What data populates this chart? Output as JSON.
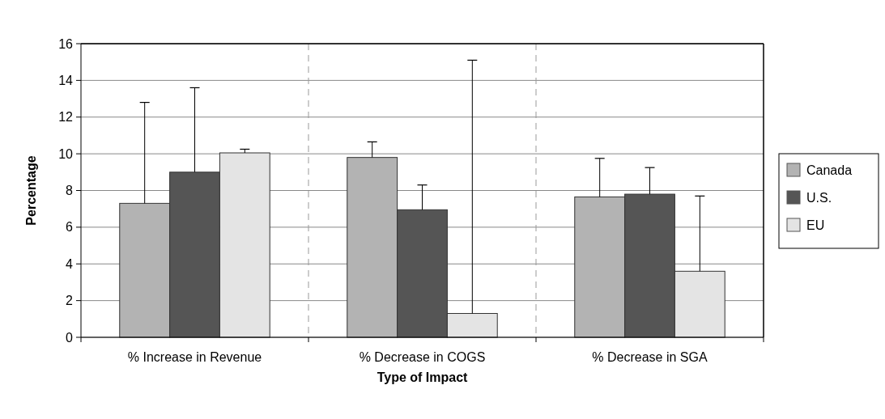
{
  "chart_data": {
    "type": "bar",
    "xlabel": "Type of Impact",
    "ylabel": "Percentage",
    "categories": [
      "% Increase in Revenue",
      "% Decrease in COGS",
      "% Decrease in SGA"
    ],
    "series": [
      {
        "name": "Canada",
        "color": "#b3b3b3",
        "values": [
          7.3,
          9.8,
          7.65
        ],
        "errors": [
          [
            7.3,
            12.8
          ],
          [
            9.8,
            10.65
          ],
          [
            7.65,
            9.75
          ]
        ]
      },
      {
        "name": "U.S.",
        "color": "#555555",
        "values": [
          9.0,
          6.95,
          7.8
        ],
        "errors": [
          [
            9.0,
            13.6
          ],
          [
            6.95,
            8.3
          ],
          [
            7.8,
            9.25
          ]
        ]
      },
      {
        "name": "EU",
        "color": "#e4e4e4",
        "values": [
          10.05,
          1.3,
          3.6
        ],
        "errors": [
          [
            10.05,
            10.25
          ],
          [
            1.3,
            15.1
          ],
          [
            3.6,
            7.7
          ]
        ]
      }
    ],
    "ylim": [
      0,
      16
    ],
    "yticks": [
      0,
      2,
      4,
      6,
      8,
      10,
      12,
      14,
      16
    ],
    "grid": true,
    "legend": "right"
  }
}
